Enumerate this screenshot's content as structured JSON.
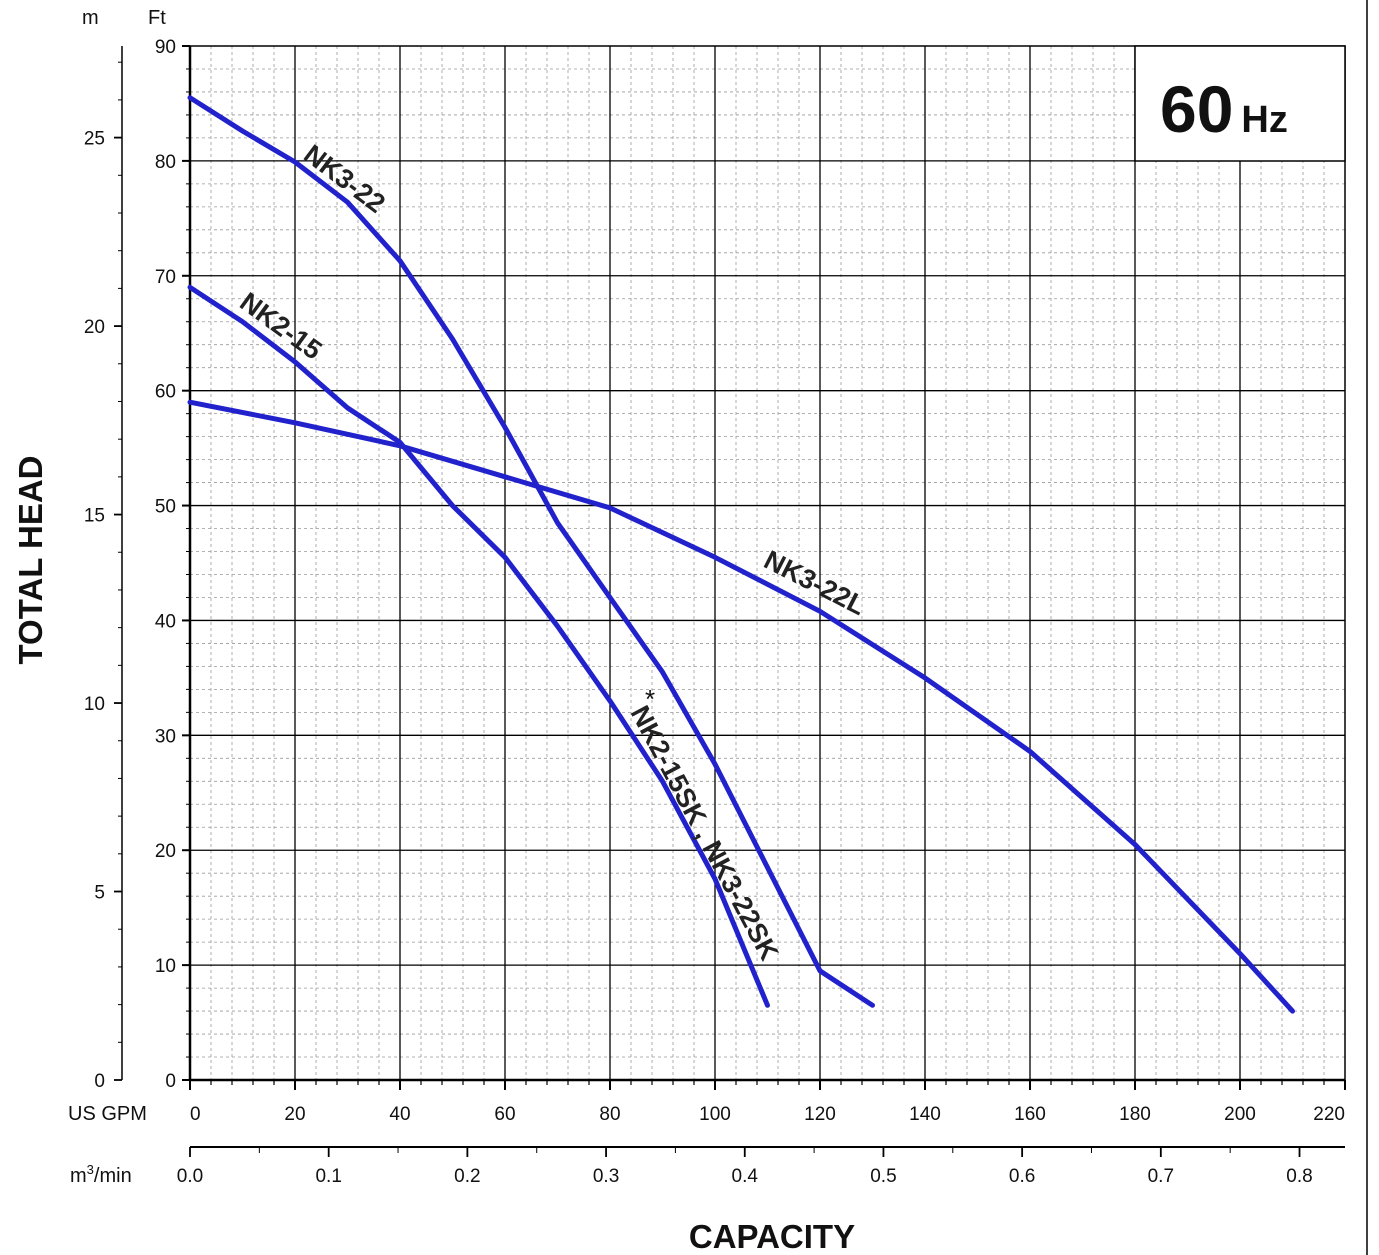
{
  "chart_data": {
    "type": "line",
    "title": "",
    "frequency_badge": {
      "value": "60",
      "unit": "Hz"
    },
    "xlabel": "CAPACITY",
    "ylabel": "TOTAL HEAD",
    "x_primary": {
      "unit": "US GPM",
      "range": [
        0,
        220
      ],
      "ticks": [
        0,
        20,
        40,
        60,
        80,
        100,
        120,
        140,
        160,
        180,
        200,
        220
      ],
      "tick_labels": [
        "0",
        "20",
        "40",
        "60",
        "80",
        "100",
        "120",
        "140",
        "160",
        "180",
        "200",
        "220"
      ]
    },
    "x_secondary": {
      "unit_base": "m",
      "unit_sup": "3",
      "unit_rest": "/min",
      "range": [
        0,
        0.8328
      ],
      "ticks": [
        0,
        0.1,
        0.2,
        0.3,
        0.4,
        0.5,
        0.6,
        0.7,
        0.8
      ],
      "tick_labels": [
        "0.0",
        "0.1",
        "0.2",
        "0.3",
        "0.4",
        "0.5",
        "0.6",
        "0.7",
        "0.8"
      ]
    },
    "y_primary": {
      "unit": "Ft",
      "range": [
        0,
        90
      ],
      "ticks": [
        0,
        10,
        20,
        30,
        40,
        50,
        60,
        70,
        80,
        90
      ],
      "tick_labels": [
        "0",
        "10",
        "20",
        "30",
        "40",
        "50",
        "60",
        "70",
        "80",
        "90"
      ]
    },
    "y_secondary": {
      "unit": "m",
      "range": [
        0,
        27.43
      ],
      "ticks": [
        0,
        5,
        10,
        15,
        20,
        25
      ],
      "tick_labels": [
        "0",
        "5",
        "10",
        "15",
        "20",
        "25"
      ]
    },
    "grid": true,
    "series": [
      {
        "name": "NK3-22",
        "x_unit": "US GPM",
        "y_unit": "Ft",
        "x": [
          0,
          10,
          20,
          30,
          40,
          50,
          60,
          70,
          80,
          90,
          100,
          110,
          120,
          130
        ],
        "y": [
          85.5,
          82.6,
          79.9,
          76.4,
          71.3,
          64.5,
          56.8,
          48.5,
          42.0,
          35.5,
          27.5,
          18.5,
          9.5,
          6.5
        ]
      },
      {
        "name": "NK2-15",
        "x_unit": "US GPM",
        "y_unit": "Ft",
        "x": [
          0,
          10,
          20,
          30,
          40,
          50,
          60,
          70,
          80,
          90,
          100,
          110
        ],
        "y": [
          69.0,
          66.0,
          62.5,
          58.5,
          55.5,
          50.0,
          45.5,
          39.5,
          33.0,
          26.0,
          17.5,
          6.5
        ]
      },
      {
        "name": "NK3-22L",
        "x_unit": "US GPM",
        "y_unit": "Ft",
        "x": [
          0,
          20,
          40,
          60,
          80,
          100,
          120,
          140,
          160,
          180,
          200,
          210
        ],
        "y": [
          59.0,
          57.2,
          55.2,
          52.5,
          49.8,
          45.5,
          40.8,
          35.0,
          28.6,
          20.5,
          11.0,
          6.0
        ]
      }
    ],
    "annotations": [
      {
        "text": "NK3-22",
        "series": "NK3-22"
      },
      {
        "text": "NK2-15",
        "series": "NK2-15"
      },
      {
        "text": "NK3-22L",
        "series": "NK3-22L"
      },
      {
        "text": "NK2-15SK , NK3-22SK",
        "series": "NK2-15"
      },
      {
        "text": "*",
        "color": "#e11111"
      }
    ],
    "line_color": "#2222cc"
  }
}
